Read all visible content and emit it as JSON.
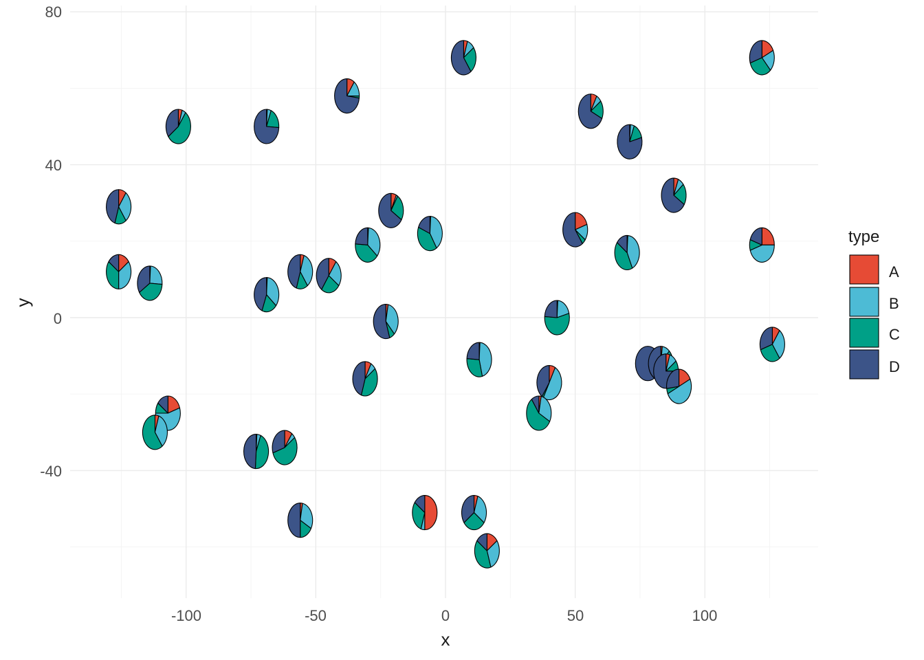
{
  "chart_data": {
    "type": "scatter-pie",
    "title": "",
    "xlabel": "x",
    "ylabel": "y",
    "xlim": [
      -144,
      144
    ],
    "ylim": [
      -73,
      82
    ],
    "x_ticks": [
      -100,
      -50,
      0,
      50,
      100
    ],
    "x_tick_labels": [
      "-100",
      "-50",
      "0",
      "50",
      "100"
    ],
    "y_ticks": [
      -40,
      0,
      40,
      80
    ],
    "y_tick_labels": [
      "-40",
      "0",
      "40",
      "80"
    ],
    "grid": true,
    "legend_position": "right",
    "legend": {
      "title": "type",
      "entries": [
        {
          "label": "A",
          "color": "#E64B35"
        },
        {
          "label": "B",
          "color": "#4DBBD5"
        },
        {
          "label": "C",
          "color": "#00A087"
        },
        {
          "label": "D",
          "color": "#3C5488"
        }
      ]
    },
    "slice_order": [
      "A",
      "B",
      "C",
      "D"
    ],
    "pies": [
      {
        "x": 7,
        "y": 68,
        "values": [
          0.05,
          0.1,
          0.25,
          0.6
        ]
      },
      {
        "x": 122,
        "y": 68,
        "values": [
          0.18,
          0.2,
          0.32,
          0.3
        ]
      },
      {
        "x": -38,
        "y": 58,
        "values": [
          0.1,
          0.15,
          0.02,
          0.73
        ]
      },
      {
        "x": 56,
        "y": 54,
        "values": [
          0.08,
          0.07,
          0.17,
          0.68
        ]
      },
      {
        "x": -103,
        "y": 50,
        "values": [
          0.05,
          0.05,
          0.55,
          0.35
        ]
      },
      {
        "x": -69,
        "y": 50,
        "values": [
          0.01,
          0.05,
          0.2,
          0.74
        ]
      },
      {
        "x": 71,
        "y": 46,
        "values": [
          0.01,
          0.05,
          0.15,
          0.79
        ]
      },
      {
        "x": -126,
        "y": 29,
        "values": [
          0.1,
          0.3,
          0.15,
          0.45
        ]
      },
      {
        "x": 88,
        "y": 32,
        "values": [
          0.06,
          0.08,
          0.2,
          0.66
        ]
      },
      {
        "x": -21,
        "y": 28,
        "values": [
          0.07,
          0.02,
          0.25,
          0.66
        ]
      },
      {
        "x": -6,
        "y": 22,
        "values": [
          0.01,
          0.4,
          0.4,
          0.19
        ]
      },
      {
        "x": 50,
        "y": 23,
        "values": [
          0.2,
          0.15,
          0.05,
          0.6
        ]
      },
      {
        "x": 122,
        "y": 19,
        "values": [
          0.25,
          0.45,
          0.1,
          0.2
        ]
      },
      {
        "x": -30,
        "y": 19,
        "values": [
          0.01,
          0.35,
          0.4,
          0.24
        ]
      },
      {
        "x": 70,
        "y": 17,
        "values": [
          0.01,
          0.42,
          0.42,
          0.15
        ]
      },
      {
        "x": -126,
        "y": 12,
        "values": [
          0.15,
          0.35,
          0.35,
          0.15
        ]
      },
      {
        "x": -56,
        "y": 12,
        "values": [
          0.05,
          0.35,
          0.15,
          0.45
        ]
      },
      {
        "x": -45,
        "y": 11,
        "values": [
          0.1,
          0.25,
          0.25,
          0.4
        ]
      },
      {
        "x": -114,
        "y": 9,
        "values": [
          0.01,
          0.25,
          0.4,
          0.34
        ]
      },
      {
        "x": -69,
        "y": 6,
        "values": [
          0.01,
          0.35,
          0.2,
          0.44
        ]
      },
      {
        "x": 43,
        "y": 0,
        "values": [
          0.01,
          0.2,
          0.55,
          0.24
        ]
      },
      {
        "x": -23,
        "y": -1,
        "values": [
          0.03,
          0.35,
          0.07,
          0.55
        ]
      },
      {
        "x": 126,
        "y": -7,
        "values": [
          0.1,
          0.3,
          0.3,
          0.3
        ]
      },
      {
        "x": 13,
        "y": -11,
        "values": [
          0.01,
          0.45,
          0.3,
          0.24
        ]
      },
      {
        "x": 78,
        "y": -12,
        "values": [
          0.0,
          0.0,
          0.0,
          1.0
        ]
      },
      {
        "x": 83,
        "y": -12,
        "values": [
          0.02,
          0.1,
          0.08,
          0.8
        ]
      },
      {
        "x": 85,
        "y": -14,
        "values": [
          0.05,
          0.1,
          0.1,
          0.75
        ]
      },
      {
        "x": -31,
        "y": -16,
        "values": [
          0.08,
          0.07,
          0.4,
          0.45
        ]
      },
      {
        "x": 40,
        "y": -17,
        "values": [
          0.08,
          0.5,
          0.02,
          0.4
        ]
      },
      {
        "x": 90,
        "y": -18,
        "values": [
          0.18,
          0.5,
          0.05,
          0.27
        ]
      },
      {
        "x": -107,
        "y": -25,
        "values": [
          0.2,
          0.55,
          0.1,
          0.15
        ]
      },
      {
        "x": 36,
        "y": -25,
        "values": [
          0.03,
          0.3,
          0.57,
          0.1
        ]
      },
      {
        "x": -112,
        "y": -30,
        "values": [
          0.05,
          0.35,
          0.6,
          0.0
        ]
      },
      {
        "x": -62,
        "y": -34,
        "values": [
          0.1,
          0.05,
          0.55,
          0.3
        ]
      },
      {
        "x": -73,
        "y": -35,
        "values": [
          0.01,
          0.05,
          0.45,
          0.49
        ]
      },
      {
        "x": -56,
        "y": -53,
        "values": [
          0.03,
          0.3,
          0.17,
          0.5
        ]
      },
      {
        "x": -8,
        "y": -51,
        "values": [
          0.5,
          0.05,
          0.3,
          0.15
        ]
      },
      {
        "x": 11,
        "y": -51,
        "values": [
          0.05,
          0.3,
          0.3,
          0.35
        ]
      },
      {
        "x": 16,
        "y": -61,
        "values": [
          0.15,
          0.3,
          0.4,
          0.15
        ]
      }
    ]
  }
}
